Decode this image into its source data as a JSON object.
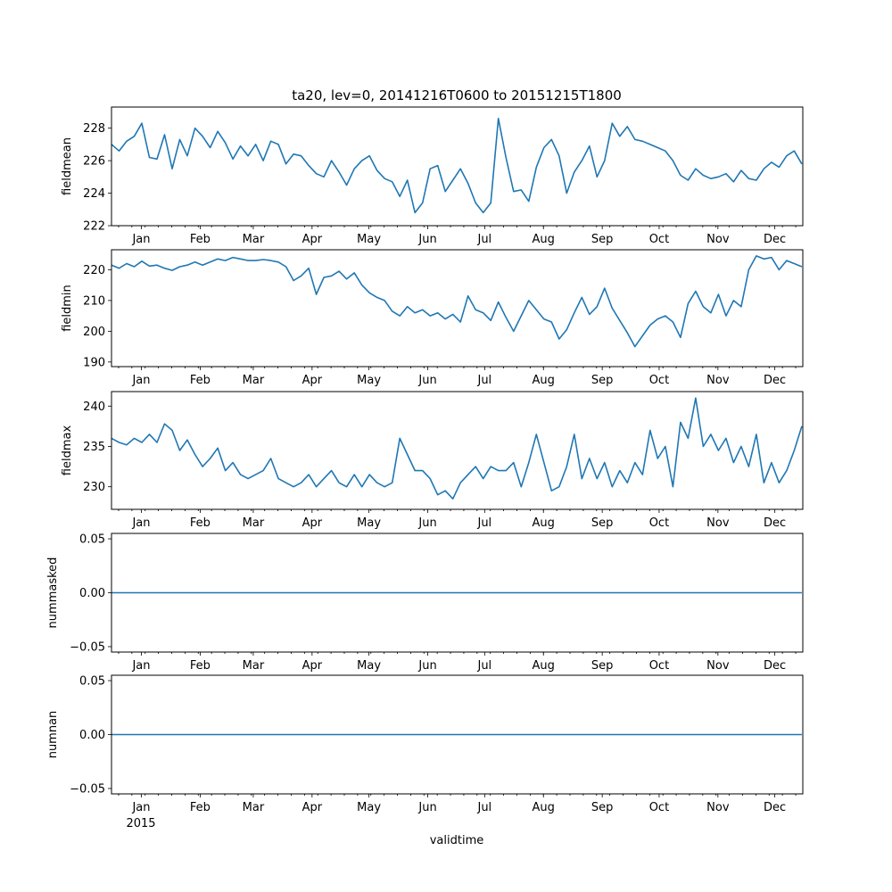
{
  "chart_data": [
    {
      "type": "line",
      "title": "ta20, lev=0, 20141216T0600 to 20151215T1800",
      "ylabel": "fieldmean",
      "xlabel": "",
      "ylim": [
        222,
        229.3
      ],
      "yticks": [
        222,
        224,
        226,
        228
      ],
      "yticklabels": [
        "222",
        "224",
        "226",
        "228"
      ],
      "series": [
        {
          "name": "fieldmean",
          "color": "#1f77b4",
          "x": [
            0,
            4,
            8,
            12,
            16,
            20,
            24,
            28,
            32,
            36,
            40,
            44,
            48,
            52,
            56,
            60,
            64,
            68,
            72,
            76,
            80,
            84,
            88,
            92,
            96,
            100,
            104,
            108,
            112,
            116,
            120,
            124,
            128,
            132,
            136,
            140,
            144,
            148,
            152,
            156,
            160,
            164,
            168,
            172,
            176,
            180,
            184,
            188,
            192,
            196,
            200,
            204,
            208,
            212,
            216,
            220,
            224,
            228,
            232,
            236,
            240,
            244,
            248,
            252,
            256,
            260,
            264,
            268,
            272,
            276,
            280,
            284,
            288,
            292,
            296,
            300,
            304,
            308,
            312,
            316,
            320,
            324,
            328,
            332,
            336,
            340,
            344,
            348,
            352,
            356,
            360,
            364
          ],
          "values": [
            227.0,
            226.6,
            227.2,
            227.5,
            228.3,
            226.2,
            226.1,
            227.6,
            225.5,
            227.3,
            226.3,
            228.0,
            227.5,
            226.8,
            227.8,
            227.1,
            226.1,
            226.9,
            226.3,
            227.0,
            226.0,
            227.2,
            227.0,
            225.8,
            226.4,
            226.3,
            225.7,
            225.2,
            225.0,
            226.0,
            225.3,
            224.5,
            225.5,
            226.0,
            226.3,
            225.4,
            224.9,
            224.7,
            223.8,
            224.8,
            222.8,
            223.4,
            225.5,
            225.7,
            224.1,
            224.8,
            225.5,
            224.6,
            223.4,
            222.8,
            223.4,
            228.6,
            226.2,
            224.1,
            224.2,
            223.5,
            225.6,
            226.8,
            227.3,
            226.3,
            224.0,
            225.3,
            226.0,
            226.9,
            225.0,
            226.0,
            228.3,
            227.5,
            228.1,
            227.3,
            227.2,
            227.0,
            226.8,
            226.6,
            226.0,
            225.1,
            224.8,
            225.5,
            225.1,
            224.9,
            225.0,
            225.2,
            224.7,
            225.4,
            224.9,
            224.8,
            225.5,
            225.9,
            225.6,
            226.3,
            226.6,
            225.8
          ]
        }
      ]
    },
    {
      "type": "line",
      "title": "",
      "ylabel": "fieldmin",
      "xlabel": "",
      "ylim": [
        188.5,
        226.5
      ],
      "yticks": [
        190,
        200,
        210,
        220
      ],
      "yticklabels": [
        "190",
        "200",
        "210",
        "220"
      ],
      "series": [
        {
          "name": "fieldmin",
          "color": "#1f77b4",
          "x": [
            0,
            4,
            8,
            12,
            16,
            20,
            24,
            28,
            32,
            36,
            40,
            44,
            48,
            52,
            56,
            60,
            64,
            68,
            72,
            76,
            80,
            84,
            88,
            92,
            96,
            100,
            104,
            108,
            112,
            116,
            120,
            124,
            128,
            132,
            136,
            140,
            144,
            148,
            152,
            156,
            160,
            164,
            168,
            172,
            176,
            180,
            184,
            188,
            192,
            196,
            200,
            204,
            208,
            212,
            216,
            220,
            224,
            228,
            232,
            236,
            240,
            244,
            248,
            252,
            256,
            260,
            264,
            268,
            272,
            276,
            280,
            284,
            288,
            292,
            296,
            300,
            304,
            308,
            312,
            316,
            320,
            324,
            328,
            332,
            336,
            340,
            344,
            348,
            352,
            356,
            360,
            364
          ],
          "values": [
            221.5,
            220.5,
            222.0,
            221.0,
            222.8,
            221.2,
            221.5,
            220.5,
            219.8,
            221.0,
            221.5,
            222.5,
            221.5,
            222.5,
            223.5,
            223.0,
            224.0,
            223.5,
            223.0,
            223.0,
            223.3,
            223.0,
            222.5,
            221.0,
            216.5,
            218.0,
            220.5,
            212.0,
            217.5,
            218.0,
            219.5,
            217.0,
            219.0,
            215.0,
            212.5,
            211.0,
            210.0,
            206.5,
            205.0,
            208.0,
            206.0,
            207.0,
            205.0,
            206.0,
            204.0,
            205.5,
            203.0,
            211.5,
            207.0,
            206.0,
            203.5,
            209.5,
            204.5,
            200.0,
            205.0,
            210.0,
            207.0,
            204.0,
            203.0,
            197.5,
            200.5,
            206.0,
            211.0,
            205.5,
            208.0,
            214.0,
            207.5,
            203.5,
            199.5,
            195.0,
            198.5,
            202.0,
            204.0,
            205.0,
            203.0,
            198.0,
            209.0,
            213.0,
            208.0,
            206.0,
            212.0,
            205.0,
            210.0,
            208.0,
            220.0,
            224.5,
            223.5,
            224.0,
            220.0,
            223.0,
            222.0,
            221.0
          ]
        }
      ]
    },
    {
      "type": "line",
      "title": "",
      "ylabel": "fieldmax",
      "xlabel": "",
      "ylim": [
        227.2,
        241.8
      ],
      "yticks": [
        230,
        235,
        240
      ],
      "yticklabels": [
        "230",
        "235",
        "240"
      ],
      "series": [
        {
          "name": "fieldmax",
          "color": "#1f77b4",
          "x": [
            0,
            4,
            8,
            12,
            16,
            20,
            24,
            28,
            32,
            36,
            40,
            44,
            48,
            52,
            56,
            60,
            64,
            68,
            72,
            76,
            80,
            84,
            88,
            92,
            96,
            100,
            104,
            108,
            112,
            116,
            120,
            124,
            128,
            132,
            136,
            140,
            144,
            148,
            152,
            156,
            160,
            164,
            168,
            172,
            176,
            180,
            184,
            188,
            192,
            196,
            200,
            204,
            208,
            212,
            216,
            220,
            224,
            228,
            232,
            236,
            240,
            244,
            248,
            252,
            256,
            260,
            264,
            268,
            272,
            276,
            280,
            284,
            288,
            292,
            296,
            300,
            304,
            308,
            312,
            316,
            320,
            324,
            328,
            332,
            336,
            340,
            344,
            348,
            352,
            356,
            360,
            364
          ],
          "values": [
            236.0,
            235.5,
            235.2,
            236.0,
            235.5,
            236.5,
            235.5,
            237.8,
            237.0,
            234.5,
            235.8,
            234.0,
            232.5,
            233.5,
            234.8,
            232.0,
            233.0,
            231.5,
            231.0,
            231.5,
            232.0,
            233.5,
            231.0,
            230.5,
            230.0,
            230.5,
            231.5,
            230.0,
            231.0,
            232.0,
            230.5,
            230.0,
            231.5,
            230.0,
            231.5,
            230.5,
            230.0,
            230.5,
            236.0,
            234.0,
            232.0,
            232.0,
            231.0,
            229.0,
            229.5,
            228.5,
            230.5,
            231.5,
            232.5,
            231.0,
            232.5,
            232.0,
            232.0,
            233.0,
            230.0,
            233.0,
            236.5,
            233.0,
            229.5,
            230.0,
            232.5,
            236.5,
            231.0,
            233.5,
            231.0,
            233.0,
            230.0,
            232.0,
            230.5,
            233.0,
            231.5,
            237.0,
            233.5,
            235.0,
            230.0,
            238.0,
            236.0,
            241.0,
            235.0,
            236.5,
            234.5,
            236.0,
            233.0,
            235.0,
            232.5,
            236.5,
            230.5,
            233.0,
            230.5,
            232.0,
            234.5,
            237.5
          ]
        }
      ]
    },
    {
      "type": "line",
      "title": "",
      "ylabel": "nummasked",
      "xlabel": "",
      "ylim": [
        -0.055,
        0.055
      ],
      "yticks": [
        -0.05,
        0.0,
        0.05
      ],
      "yticklabels": [
        "−0.05",
        "0.00",
        "0.05"
      ],
      "series": [
        {
          "name": "nummasked",
          "color": "#1f77b4",
          "x": [
            0,
            364
          ],
          "values": [
            0,
            0
          ]
        }
      ]
    },
    {
      "type": "line",
      "title": "",
      "ylabel": "numnan",
      "xlabel": "validtime",
      "ylim": [
        -0.055,
        0.055
      ],
      "yticks": [
        -0.05,
        0.0,
        0.05
      ],
      "yticklabels": [
        "−0.05",
        "0.00",
        "0.05"
      ],
      "year_label": "2015",
      "series": [
        {
          "name": "numnan",
          "color": "#1f77b4",
          "x": [
            0,
            364
          ],
          "values": [
            0,
            0
          ]
        }
      ]
    }
  ],
  "x_axis": {
    "xlim": [
      0,
      364.5
    ],
    "month_labels": [
      "Jan",
      "Feb",
      "Mar",
      "Apr",
      "May",
      "Jun",
      "Jul",
      "Aug",
      "Sep",
      "Oct",
      "Nov",
      "Dec"
    ],
    "month_starts": [
      15.75,
      46.75,
      74.75,
      105.75,
      135.75,
      166.75,
      196.75,
      227.75,
      258.75,
      288.75,
      319.75,
      349.75
    ]
  }
}
